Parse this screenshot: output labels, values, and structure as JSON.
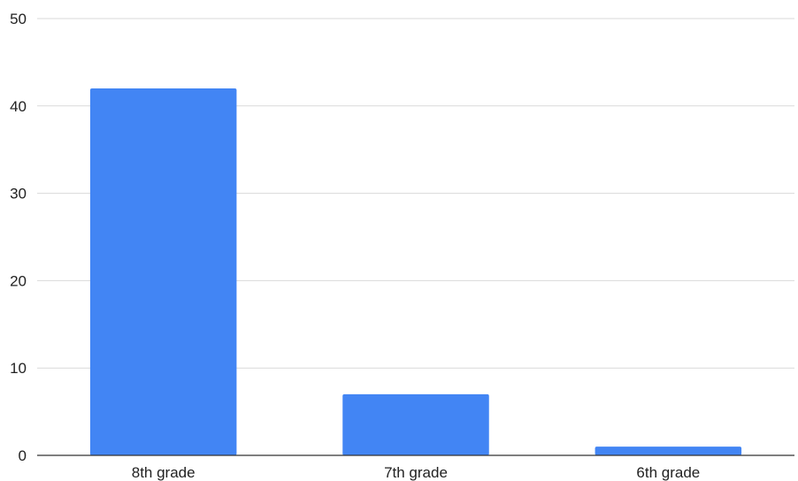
{
  "chart_data": {
    "type": "bar",
    "categories": [
      "8th grade",
      "7th grade",
      "6th grade"
    ],
    "values": [
      42,
      7,
      1
    ],
    "title": "",
    "xlabel": "",
    "ylabel": "",
    "ylim": [
      0,
      50
    ],
    "yticks": [
      0,
      10,
      20,
      30,
      40,
      50
    ],
    "grid": true,
    "legend": "none",
    "bar_color": "#4285f4"
  }
}
